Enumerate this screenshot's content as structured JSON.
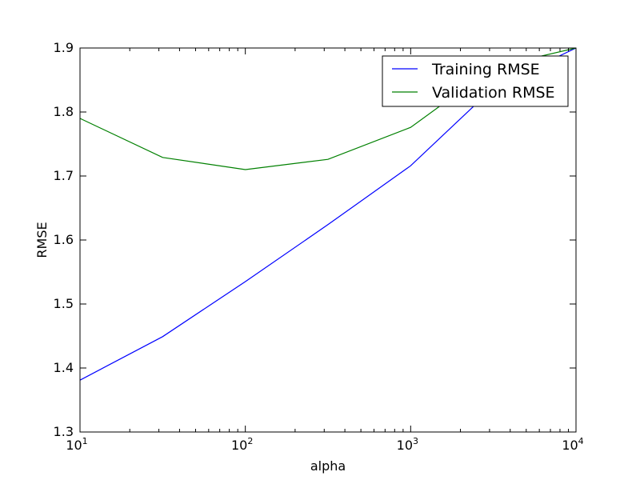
{
  "chart_data": {
    "type": "line",
    "xlabel": "alpha",
    "ylabel": "RMSE",
    "xscale": "log",
    "xlim": [
      10,
      10000
    ],
    "ylim": [
      1.3,
      1.9
    ],
    "x_ticks": [
      {
        "value": 10,
        "base": "10",
        "exp": "1"
      },
      {
        "value": 100,
        "base": "10",
        "exp": "2"
      },
      {
        "value": 1000,
        "base": "10",
        "exp": "3"
      },
      {
        "value": 10000,
        "base": "10",
        "exp": "4"
      }
    ],
    "y_ticks": [
      "1.3",
      "1.4",
      "1.5",
      "1.6",
      "1.7",
      "1.8",
      "1.9"
    ],
    "grid": false,
    "legend_position": "top-right",
    "series": [
      {
        "name": "Training RMSE",
        "color": "#0000ff",
        "x": [
          10,
          31.6,
          100,
          316,
          1000,
          3162,
          10000
        ],
        "y": [
          1.381,
          1.449,
          1.535,
          1.624,
          1.716,
          1.838,
          1.9
        ]
      },
      {
        "name": "Validation RMSE",
        "color": "#008000",
        "x": [
          10,
          31.6,
          100,
          316,
          1000,
          3162,
          10000
        ],
        "y": [
          1.79,
          1.729,
          1.71,
          1.726,
          1.776,
          1.87,
          1.9
        ]
      }
    ]
  }
}
